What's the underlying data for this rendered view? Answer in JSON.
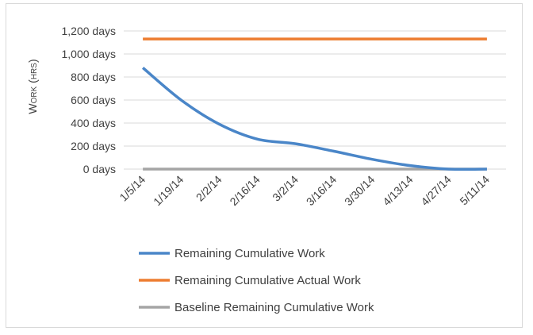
{
  "chart_data": {
    "type": "line",
    "title": "",
    "xlabel": "",
    "ylabel": "Work (hrs)",
    "ylim": [
      0,
      1200
    ],
    "y_ticks": [
      0,
      200,
      400,
      600,
      800,
      1000,
      1200
    ],
    "y_tick_labels": [
      "0 days",
      "200 days",
      "400 days",
      "600 days",
      "800 days",
      "1,000 days",
      "1,200 days"
    ],
    "categories": [
      "1/5/14",
      "1/19/14",
      "2/2/14",
      "2/16/14",
      "3/2/14",
      "3/16/14",
      "3/30/14",
      "4/13/14",
      "4/27/14",
      "5/11/14"
    ],
    "grid": true,
    "legend_position": "bottom",
    "series": [
      {
        "name": "Remaining Cumulative Work",
        "color": "#4a86c8",
        "values": [
          880,
          600,
          390,
          260,
          220,
          155,
          85,
          30,
          0,
          0
        ]
      },
      {
        "name": "Remaining Cumulative Actual Work",
        "color": "#ed7d31",
        "values": [
          1130,
          1130,
          1130,
          1130,
          1130,
          1130,
          1130,
          1130,
          1130,
          1130
        ]
      },
      {
        "name": "Baseline Remaining Cumulative Work",
        "color": "#a5a5a5",
        "values": [
          0,
          0,
          0,
          0,
          0,
          0,
          0,
          0,
          0,
          0
        ]
      }
    ]
  }
}
